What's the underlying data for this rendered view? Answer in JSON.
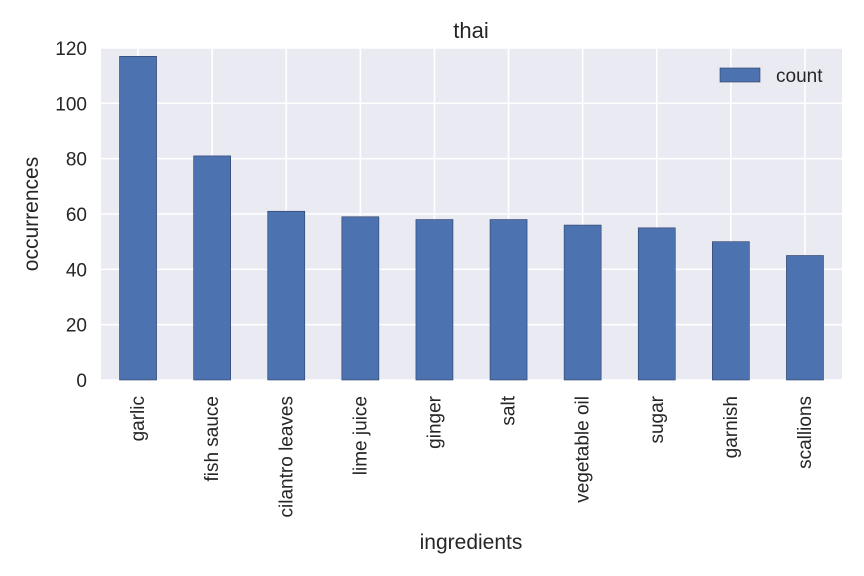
{
  "chart_data": {
    "type": "bar",
    "title": "thai",
    "xlabel": "ingredients",
    "ylabel": "occurrences",
    "categories": [
      "garlic",
      "fish sauce",
      "cilantro leaves",
      "lime juice",
      "ginger",
      "salt",
      "vegetable oil",
      "sugar",
      "garnish",
      "scallions"
    ],
    "series": [
      {
        "name": "count",
        "values": [
          117,
          81,
          61,
          59,
          58,
          58,
          56,
          55,
          50,
          45
        ]
      }
    ],
    "ylim": [
      0,
      120
    ],
    "yticks": [
      "0",
      "20",
      "40",
      "60",
      "80",
      "100",
      "120"
    ],
    "grid": true,
    "legend": "top-right",
    "colors": {
      "bar": "#4C72B0",
      "plot_background": "#EAEAF2",
      "grid": "#FFFFFF"
    }
  }
}
